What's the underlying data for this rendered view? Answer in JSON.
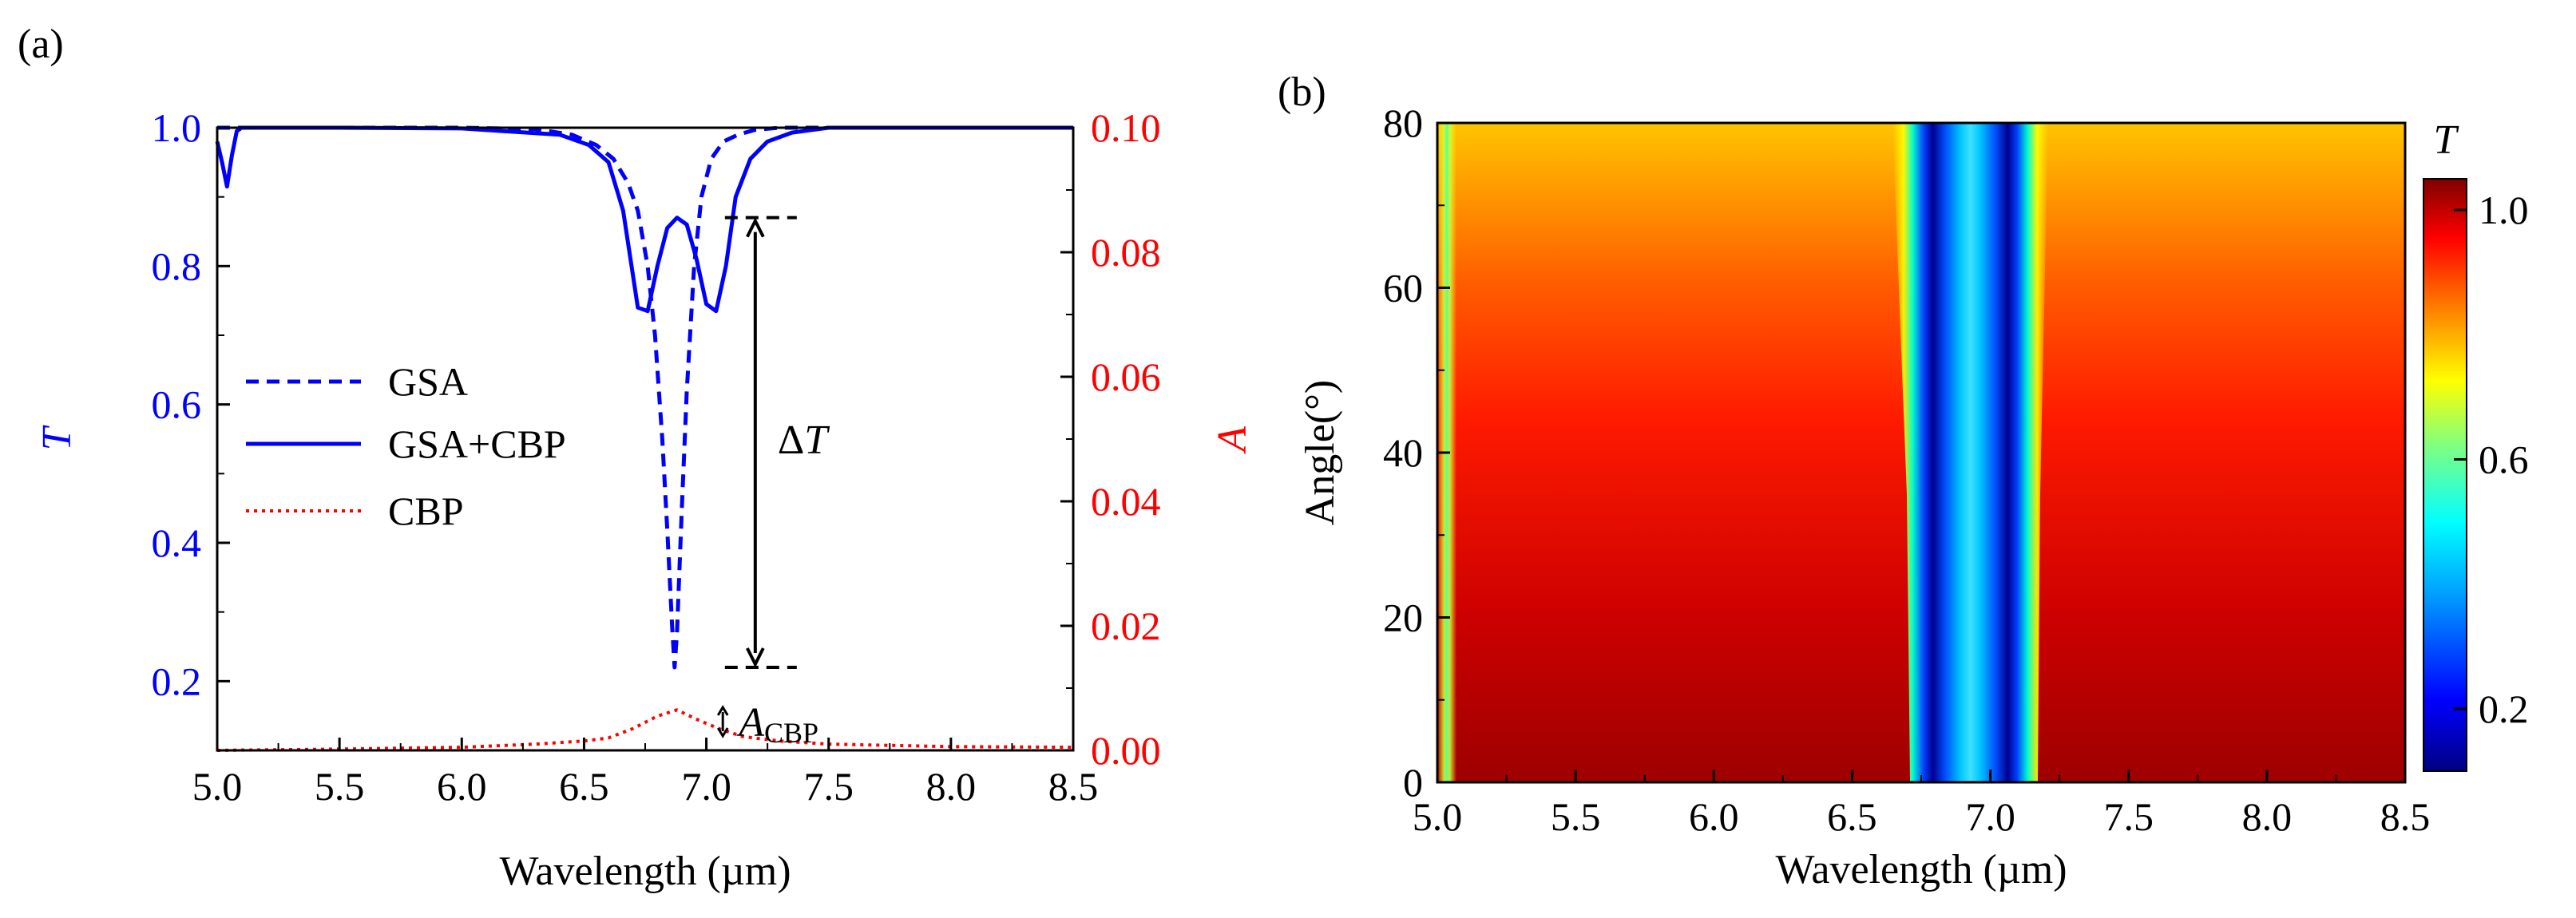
{
  "chart_data": [
    {
      "panel": "(a)",
      "type": "line",
      "xlabel": "Wavelength (µm)",
      "ylabel_left": "T",
      "ylabel_right": "A",
      "xlim": [
        5.0,
        8.5
      ],
      "ylim_left": [
        0.1,
        1.0
      ],
      "ylim_right": [
        0.0,
        0.1
      ],
      "x_ticks": [
        "5.0",
        "5.5",
        "6.0",
        "6.5",
        "7.0",
        "7.5",
        "8.0",
        "8.5"
      ],
      "y_left_ticks": [
        "0.2",
        "0.4",
        "0.6",
        "0.8",
        "1.0"
      ],
      "y_right_ticks": [
        "0.00",
        "0.02",
        "0.04",
        "0.06",
        "0.08",
        "0.10"
      ],
      "colors": {
        "T": "#0000ff",
        "A": "#ff0000",
        "annot": "#000000"
      },
      "series": [
        {
          "name": "GSA",
          "axis": "left",
          "style": "dashed",
          "color": "#0000ff",
          "x": [
            5.0,
            5.5,
            6.0,
            6.3,
            6.45,
            6.55,
            6.62,
            6.68,
            6.72,
            6.76,
            6.79,
            6.82,
            6.84,
            6.86,
            6.87,
            6.88,
            6.9,
            6.92,
            6.95,
            6.98,
            7.02,
            7.07,
            7.13,
            7.2,
            7.3,
            7.5,
            8.0,
            8.5
          ],
          "y": [
            1.0,
            1.0,
            1.0,
            0.998,
            0.99,
            0.975,
            0.955,
            0.92,
            0.88,
            0.8,
            0.7,
            0.55,
            0.42,
            0.28,
            0.22,
            0.27,
            0.45,
            0.62,
            0.8,
            0.9,
            0.955,
            0.98,
            0.99,
            0.997,
            1.0,
            1.0,
            1.0,
            1.0
          ]
        },
        {
          "name": "GSA+CBP",
          "axis": "left",
          "style": "solid",
          "color": "#0000ff",
          "x": [
            5.0,
            5.02,
            5.04,
            5.06,
            5.08,
            5.1,
            5.5,
            6.0,
            6.4,
            6.52,
            6.6,
            6.66,
            6.72,
            6.76,
            6.8,
            6.84,
            6.88,
            6.92,
            6.96,
            7.0,
            7.04,
            7.08,
            7.12,
            7.18,
            7.25,
            7.35,
            7.5,
            8.0,
            8.5
          ],
          "y": [
            0.98,
            0.95,
            0.915,
            0.96,
            0.995,
            1.0,
            1.0,
            0.999,
            0.99,
            0.975,
            0.95,
            0.88,
            0.74,
            0.735,
            0.8,
            0.855,
            0.87,
            0.86,
            0.81,
            0.745,
            0.735,
            0.8,
            0.9,
            0.955,
            0.98,
            0.993,
            1.0,
            1.0,
            1.0
          ]
        },
        {
          "name": "CBP",
          "axis": "right",
          "style": "dotted",
          "color": "#ff0000",
          "x": [
            5.0,
            5.5,
            6.0,
            6.3,
            6.5,
            6.6,
            6.7,
            6.8,
            6.88,
            6.96,
            7.05,
            7.15,
            7.3,
            7.5,
            8.0,
            8.5
          ],
          "y": [
            0.0,
            0.0002,
            0.0005,
            0.001,
            0.0015,
            0.002,
            0.0035,
            0.0055,
            0.0065,
            0.005,
            0.0035,
            0.0022,
            0.0015,
            0.001,
            0.0006,
            0.0005
          ]
        }
      ],
      "legend": [
        "GSA",
        "GSA+CBP",
        "CBP"
      ],
      "legend_placement": "center-left",
      "annotations": {
        "deltaT": {
          "text": "ΔT",
          "x": 7.2,
          "from_T": 0.22,
          "to_T": 0.87
        },
        "acbp": {
          "text": "A",
          "subscript": "CBP",
          "x": 7.1
        }
      }
    },
    {
      "panel": "(b)",
      "type": "heatmap",
      "xlabel": "Wavelength (µm)",
      "ylabel": "Angle(°)",
      "xlim": [
        5.0,
        8.5
      ],
      "ylim": [
        0,
        80
      ],
      "x_ticks": [
        "5.0",
        "5.5",
        "6.0",
        "6.5",
        "7.0",
        "7.5",
        "8.0",
        "8.5"
      ],
      "y_ticks": [
        "0",
        "20",
        "40",
        "60",
        "80"
      ],
      "colorbar": {
        "title": "T",
        "range": [
          0.1,
          1.05
        ],
        "ticks": [
          "0.2",
          "0.6",
          "1.0"
        ]
      },
      "features": [
        "T near 1.0 (dark red) across most wavelengths at low angles, shifting to orange/yellow (~0.85) at high angles",
        "Narrow vertical dip near 5.03 µm (T ~0.6 at top)",
        "Two deep vertical minima near 6.78 µm and 7.03 µm (T ~0.1, dark blue) with a lighter band (~0.35–0.55) between them around 6.9 µm"
      ]
    }
  ]
}
